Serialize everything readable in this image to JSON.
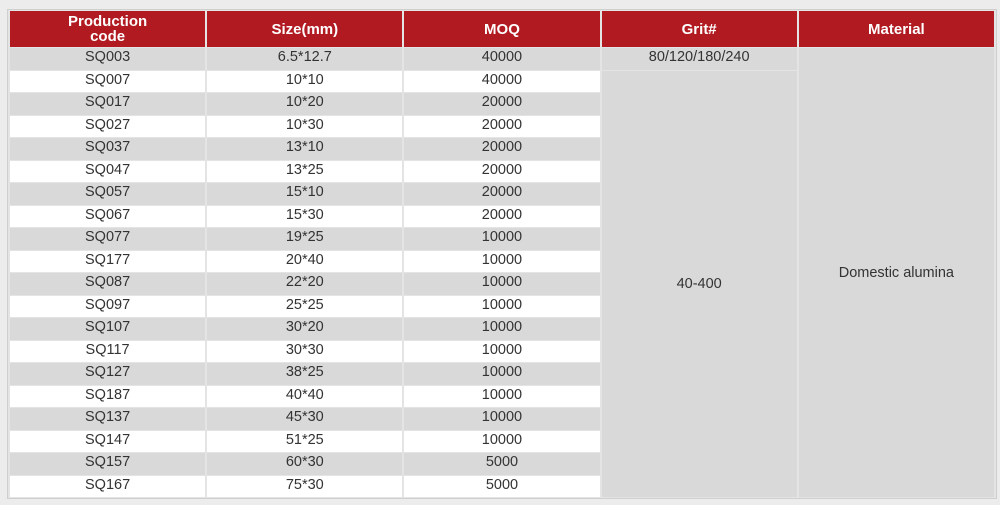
{
  "headers": [
    "Production code",
    "Size(mm)",
    "MOQ",
    "Grit#",
    "Material"
  ],
  "rows": [
    [
      "SQ003",
      "6.5*12.7",
      "40000"
    ],
    [
      "SQ007",
      "10*10",
      "40000"
    ],
    [
      "SQ017",
      "10*20",
      "20000"
    ],
    [
      "SQ027",
      "10*30",
      "20000"
    ],
    [
      "SQ037",
      "13*10",
      "20000"
    ],
    [
      "SQ047",
      "13*25",
      "20000"
    ],
    [
      "SQ057",
      "15*10",
      "20000"
    ],
    [
      "SQ067",
      "15*30",
      "20000"
    ],
    [
      "SQ077",
      "19*25",
      "10000"
    ],
    [
      "SQ177",
      "20*40",
      "10000"
    ],
    [
      "SQ087",
      "22*20",
      "10000"
    ],
    [
      "SQ097",
      "25*25",
      "10000"
    ],
    [
      "SQ107",
      "30*20",
      "10000"
    ],
    [
      "SQ117",
      "30*30",
      "10000"
    ],
    [
      "SQ127",
      "38*25",
      "10000"
    ],
    [
      "SQ187",
      "40*40",
      "10000"
    ],
    [
      "SQ137",
      "45*30",
      "10000"
    ],
    [
      "SQ147",
      "51*25",
      "10000"
    ],
    [
      "SQ157",
      "60*30",
      "5000"
    ],
    [
      "SQ167",
      "75*30",
      "5000"
    ]
  ],
  "grit_first": "80/120/180/240",
  "grit_rest": "40-400",
  "material": "Domestic alumina",
  "colors": {
    "header": "#b11a21",
    "row_alt": "#d9d9d9"
  }
}
